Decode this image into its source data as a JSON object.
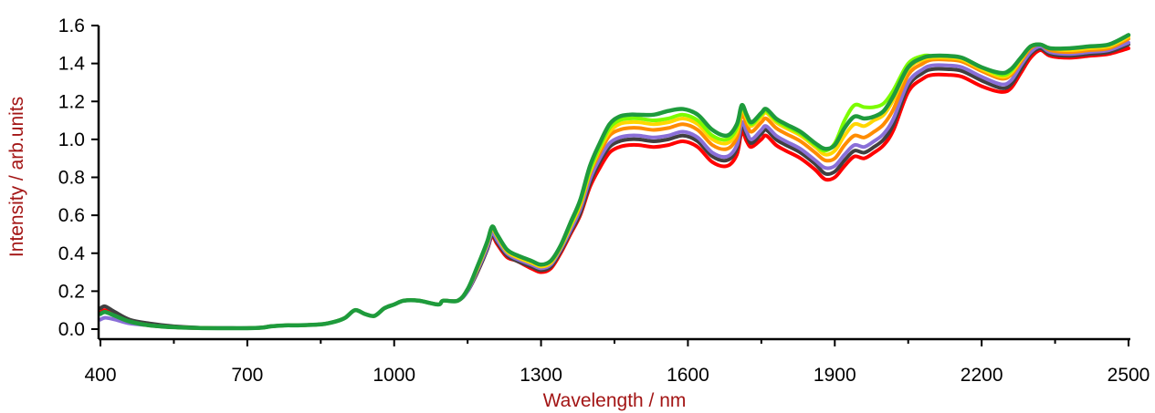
{
  "chart_data": {
    "type": "line",
    "title": "",
    "xlabel": "Wavelength / nm",
    "ylabel": "Intensity / arb.units",
    "xlim": [
      400,
      2500
    ],
    "ylim": [
      0,
      1.6
    ],
    "x_ticks": [
      400,
      700,
      1000,
      1300,
      1600,
      1900,
      2200,
      2500
    ],
    "x_tick_labels": [
      "400",
      "700",
      "1000",
      "1300",
      "1600",
      "1900",
      "2200",
      "2500"
    ],
    "y_ticks": [
      0,
      0.2,
      0.4,
      0.6,
      0.8,
      1.0,
      1.2,
      1.4,
      1.6
    ],
    "y_tick_labels": [
      "0.0",
      "0.2",
      "0.4",
      "0.6",
      "0.8",
      "1.0",
      "1.2",
      "1.4",
      "1.6"
    ],
    "grid": false,
    "legend": "none",
    "colors": {
      "axis": "#000000",
      "axis_title": "#a31515"
    },
    "x": [
      400,
      410,
      430,
      460,
      500,
      550,
      600,
      650,
      700,
      730,
      750,
      780,
      800,
      850,
      880,
      900,
      920,
      940,
      960,
      980,
      1000,
      1020,
      1050,
      1090,
      1100,
      1130,
      1150,
      1170,
      1190,
      1200,
      1210,
      1230,
      1250,
      1280,
      1300,
      1320,
      1340,
      1360,
      1380,
      1400,
      1420,
      1440,
      1460,
      1480,
      1500,
      1530,
      1560,
      1590,
      1620,
      1650,
      1680,
      1700,
      1710,
      1720,
      1730,
      1750,
      1760,
      1780,
      1800,
      1830,
      1860,
      1880,
      1900,
      1920,
      1940,
      1960,
      1980,
      2000,
      2020,
      2050,
      2080,
      2100,
      2130,
      2160,
      2200,
      2240,
      2260,
      2280,
      2300,
      2320,
      2340,
      2380,
      2420,
      2460,
      2500
    ],
    "series": [
      {
        "color": "#ff0000",
        "values": [
          0.09,
          0.1,
          0.07,
          0.04,
          0.02,
          0.01,
          0.005,
          0.005,
          0.005,
          0.008,
          0.015,
          0.02,
          0.02,
          0.025,
          0.04,
          0.06,
          0.1,
          0.08,
          0.07,
          0.11,
          0.13,
          0.15,
          0.15,
          0.13,
          0.15,
          0.15,
          0.2,
          0.3,
          0.42,
          0.49,
          0.45,
          0.38,
          0.36,
          0.32,
          0.3,
          0.32,
          0.4,
          0.5,
          0.6,
          0.75,
          0.85,
          0.93,
          0.96,
          0.97,
          0.97,
          0.96,
          0.97,
          0.99,
          0.96,
          0.88,
          0.86,
          0.92,
          1.04,
          0.99,
          0.96,
          1.0,
          1.02,
          0.97,
          0.94,
          0.9,
          0.84,
          0.79,
          0.8,
          0.86,
          0.91,
          0.9,
          0.93,
          0.97,
          1.05,
          1.25,
          1.32,
          1.34,
          1.34,
          1.33,
          1.28,
          1.25,
          1.27,
          1.35,
          1.43,
          1.47,
          1.44,
          1.43,
          1.44,
          1.45,
          1.48
        ]
      },
      {
        "color": "#404040",
        "values": [
          0.11,
          0.12,
          0.09,
          0.05,
          0.03,
          0.015,
          0.008,
          0.006,
          0.006,
          0.009,
          0.016,
          0.02,
          0.02,
          0.025,
          0.04,
          0.06,
          0.1,
          0.08,
          0.07,
          0.11,
          0.13,
          0.15,
          0.15,
          0.13,
          0.15,
          0.15,
          0.2,
          0.3,
          0.42,
          0.5,
          0.46,
          0.39,
          0.36,
          0.33,
          0.31,
          0.33,
          0.41,
          0.51,
          0.61,
          0.77,
          0.88,
          0.96,
          0.99,
          1.0,
          1.0,
          0.99,
          1.0,
          1.02,
          0.99,
          0.91,
          0.89,
          0.95,
          1.07,
          1.02,
          0.98,
          1.03,
          1.05,
          1.0,
          0.97,
          0.93,
          0.87,
          0.82,
          0.83,
          0.89,
          0.94,
          0.93,
          0.96,
          1.0,
          1.08,
          1.28,
          1.35,
          1.37,
          1.37,
          1.36,
          1.31,
          1.27,
          1.29,
          1.37,
          1.45,
          1.48,
          1.45,
          1.44,
          1.45,
          1.46,
          1.5
        ]
      },
      {
        "color": "#8a6fd8",
        "values": [
          0.05,
          0.06,
          0.05,
          0.03,
          0.02,
          0.01,
          0.005,
          0.005,
          0.005,
          0.008,
          0.015,
          0.02,
          0.02,
          0.025,
          0.04,
          0.06,
          0.1,
          0.08,
          0.07,
          0.11,
          0.13,
          0.15,
          0.15,
          0.13,
          0.15,
          0.15,
          0.2,
          0.31,
          0.43,
          0.51,
          0.47,
          0.4,
          0.37,
          0.34,
          0.32,
          0.34,
          0.42,
          0.52,
          0.63,
          0.79,
          0.9,
          0.98,
          1.01,
          1.02,
          1.02,
          1.01,
          1.02,
          1.04,
          1.01,
          0.93,
          0.91,
          0.97,
          1.09,
          1.04,
          1.0,
          1.05,
          1.07,
          1.02,
          0.99,
          0.95,
          0.89,
          0.85,
          0.86,
          0.92,
          0.97,
          0.96,
          0.99,
          1.03,
          1.11,
          1.3,
          1.37,
          1.39,
          1.39,
          1.38,
          1.33,
          1.29,
          1.31,
          1.39,
          1.46,
          1.49,
          1.46,
          1.45,
          1.46,
          1.47,
          1.51
        ]
      },
      {
        "color": "#ff8c00",
        "values": [
          0.08,
          0.09,
          0.07,
          0.04,
          0.02,
          0.01,
          0.006,
          0.005,
          0.005,
          0.008,
          0.015,
          0.02,
          0.02,
          0.025,
          0.04,
          0.06,
          0.1,
          0.08,
          0.07,
          0.11,
          0.13,
          0.15,
          0.15,
          0.13,
          0.15,
          0.15,
          0.21,
          0.32,
          0.45,
          0.53,
          0.49,
          0.41,
          0.38,
          0.35,
          0.33,
          0.35,
          0.43,
          0.54,
          0.65,
          0.82,
          0.93,
          1.02,
          1.05,
          1.06,
          1.06,
          1.05,
          1.06,
          1.08,
          1.05,
          0.97,
          0.95,
          1.01,
          1.13,
          1.08,
          1.04,
          1.09,
          1.11,
          1.06,
          1.03,
          0.99,
          0.93,
          0.89,
          0.9,
          0.97,
          1.02,
          1.01,
          1.04,
          1.08,
          1.16,
          1.34,
          1.4,
          1.42,
          1.42,
          1.41,
          1.36,
          1.32,
          1.34,
          1.41,
          1.48,
          1.5,
          1.47,
          1.46,
          1.47,
          1.48,
          1.53
        ]
      },
      {
        "color": "#ffd700",
        "values": [
          0.08,
          0.09,
          0.07,
          0.04,
          0.02,
          0.01,
          0.006,
          0.005,
          0.005,
          0.008,
          0.015,
          0.02,
          0.02,
          0.025,
          0.04,
          0.06,
          0.1,
          0.08,
          0.07,
          0.11,
          0.13,
          0.15,
          0.15,
          0.13,
          0.15,
          0.15,
          0.21,
          0.32,
          0.45,
          0.53,
          0.49,
          0.41,
          0.38,
          0.35,
          0.33,
          0.35,
          0.43,
          0.54,
          0.66,
          0.83,
          0.95,
          1.04,
          1.08,
          1.09,
          1.09,
          1.08,
          1.09,
          1.11,
          1.08,
          1.0,
          0.98,
          1.04,
          1.16,
          1.11,
          1.07,
          1.12,
          1.14,
          1.09,
          1.06,
          1.02,
          0.96,
          0.92,
          0.94,
          1.02,
          1.08,
          1.07,
          1.1,
          1.13,
          1.21,
          1.37,
          1.42,
          1.43,
          1.43,
          1.42,
          1.37,
          1.33,
          1.35,
          1.42,
          1.49,
          1.5,
          1.48,
          1.47,
          1.48,
          1.49,
          1.54
        ]
      },
      {
        "color": "#7cfc00",
        "values": [
          0.08,
          0.09,
          0.07,
          0.04,
          0.02,
          0.01,
          0.006,
          0.005,
          0.005,
          0.008,
          0.015,
          0.02,
          0.02,
          0.025,
          0.04,
          0.06,
          0.1,
          0.08,
          0.07,
          0.11,
          0.13,
          0.15,
          0.15,
          0.13,
          0.15,
          0.15,
          0.21,
          0.33,
          0.46,
          0.54,
          0.5,
          0.42,
          0.39,
          0.36,
          0.34,
          0.36,
          0.44,
          0.55,
          0.67,
          0.84,
          0.96,
          1.06,
          1.1,
          1.11,
          1.11,
          1.1,
          1.11,
          1.13,
          1.1,
          1.02,
          1.0,
          1.06,
          1.17,
          1.12,
          1.08,
          1.13,
          1.15,
          1.1,
          1.07,
          1.03,
          0.97,
          0.94,
          0.98,
          1.1,
          1.18,
          1.17,
          1.17,
          1.19,
          1.26,
          1.4,
          1.44,
          1.44,
          1.44,
          1.43,
          1.38,
          1.34,
          1.36,
          1.43,
          1.49,
          1.5,
          1.48,
          1.48,
          1.49,
          1.5,
          1.55
        ]
      },
      {
        "color": "#1e9b3c",
        "values": [
          0.08,
          0.09,
          0.07,
          0.04,
          0.02,
          0.01,
          0.006,
          0.005,
          0.005,
          0.008,
          0.015,
          0.02,
          0.02,
          0.025,
          0.04,
          0.06,
          0.1,
          0.08,
          0.07,
          0.11,
          0.13,
          0.15,
          0.15,
          0.13,
          0.15,
          0.15,
          0.21,
          0.33,
          0.46,
          0.54,
          0.5,
          0.42,
          0.39,
          0.36,
          0.34,
          0.36,
          0.44,
          0.56,
          0.68,
          0.86,
          0.98,
          1.08,
          1.12,
          1.13,
          1.13,
          1.13,
          1.15,
          1.16,
          1.13,
          1.05,
          1.02,
          1.08,
          1.18,
          1.13,
          1.09,
          1.14,
          1.16,
          1.11,
          1.08,
          1.04,
          0.98,
          0.95,
          0.97,
          1.06,
          1.12,
          1.11,
          1.12,
          1.15,
          1.23,
          1.38,
          1.43,
          1.44,
          1.44,
          1.43,
          1.38,
          1.35,
          1.37,
          1.43,
          1.49,
          1.5,
          1.48,
          1.48,
          1.49,
          1.5,
          1.55
        ]
      }
    ]
  }
}
